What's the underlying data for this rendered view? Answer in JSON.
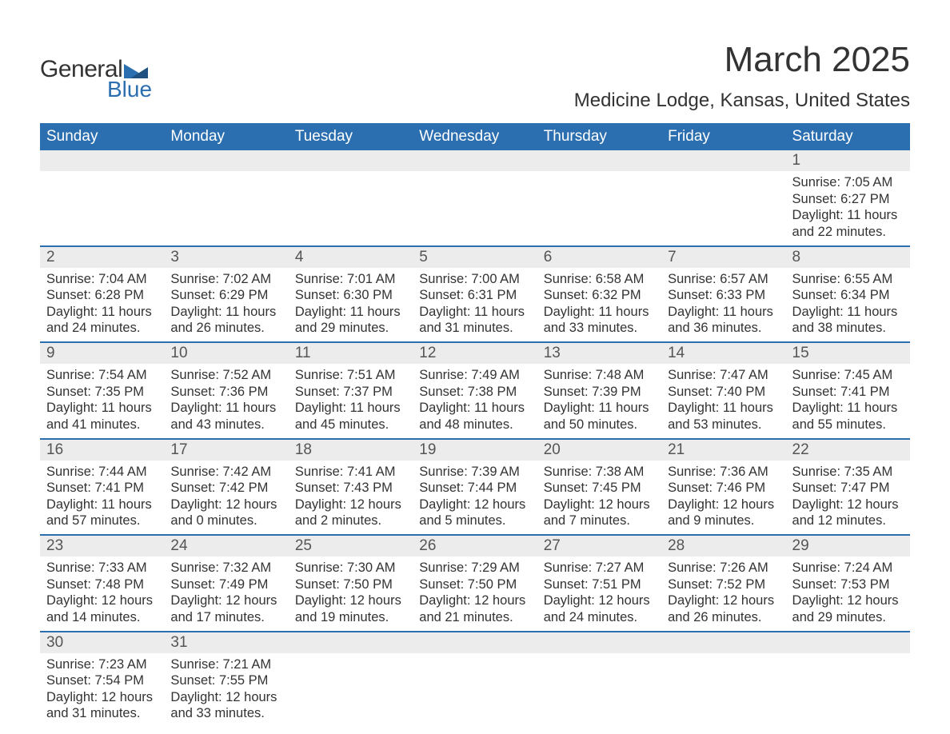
{
  "brand": {
    "word1": "General",
    "word2": "Blue",
    "text_color": "#333333",
    "accent_color": "#2c6fb0"
  },
  "title": {
    "month": "March 2025",
    "location": "Medicine Lodge, Kansas, United States",
    "month_fontsize": 44,
    "location_fontsize": 24
  },
  "calendar": {
    "header_bg": "#2c6fb0",
    "header_text_color": "#ffffff",
    "daynum_row_bg": "#ececec",
    "body_text_color": "#333333",
    "separator_color": "#2c6fb0",
    "day_headers": [
      "Sunday",
      "Monday",
      "Tuesday",
      "Wednesday",
      "Thursday",
      "Friday",
      "Saturday"
    ],
    "weeks": [
      [
        {
          "n": "",
          "sunrise": "",
          "sunset": "",
          "daylight": ""
        },
        {
          "n": "",
          "sunrise": "",
          "sunset": "",
          "daylight": ""
        },
        {
          "n": "",
          "sunrise": "",
          "sunset": "",
          "daylight": ""
        },
        {
          "n": "",
          "sunrise": "",
          "sunset": "",
          "daylight": ""
        },
        {
          "n": "",
          "sunrise": "",
          "sunset": "",
          "daylight": ""
        },
        {
          "n": "",
          "sunrise": "",
          "sunset": "",
          "daylight": ""
        },
        {
          "n": "1",
          "sunrise": "Sunrise: 7:05 AM",
          "sunset": "Sunset: 6:27 PM",
          "daylight": "Daylight: 11 hours and 22 minutes."
        }
      ],
      [
        {
          "n": "2",
          "sunrise": "Sunrise: 7:04 AM",
          "sunset": "Sunset: 6:28 PM",
          "daylight": "Daylight: 11 hours and 24 minutes."
        },
        {
          "n": "3",
          "sunrise": "Sunrise: 7:02 AM",
          "sunset": "Sunset: 6:29 PM",
          "daylight": "Daylight: 11 hours and 26 minutes."
        },
        {
          "n": "4",
          "sunrise": "Sunrise: 7:01 AM",
          "sunset": "Sunset: 6:30 PM",
          "daylight": "Daylight: 11 hours and 29 minutes."
        },
        {
          "n": "5",
          "sunrise": "Sunrise: 7:00 AM",
          "sunset": "Sunset: 6:31 PM",
          "daylight": "Daylight: 11 hours and 31 minutes."
        },
        {
          "n": "6",
          "sunrise": "Sunrise: 6:58 AM",
          "sunset": "Sunset: 6:32 PM",
          "daylight": "Daylight: 11 hours and 33 minutes."
        },
        {
          "n": "7",
          "sunrise": "Sunrise: 6:57 AM",
          "sunset": "Sunset: 6:33 PM",
          "daylight": "Daylight: 11 hours and 36 minutes."
        },
        {
          "n": "8",
          "sunrise": "Sunrise: 6:55 AM",
          "sunset": "Sunset: 6:34 PM",
          "daylight": "Daylight: 11 hours and 38 minutes."
        }
      ],
      [
        {
          "n": "9",
          "sunrise": "Sunrise: 7:54 AM",
          "sunset": "Sunset: 7:35 PM",
          "daylight": "Daylight: 11 hours and 41 minutes."
        },
        {
          "n": "10",
          "sunrise": "Sunrise: 7:52 AM",
          "sunset": "Sunset: 7:36 PM",
          "daylight": "Daylight: 11 hours and 43 minutes."
        },
        {
          "n": "11",
          "sunrise": "Sunrise: 7:51 AM",
          "sunset": "Sunset: 7:37 PM",
          "daylight": "Daylight: 11 hours and 45 minutes."
        },
        {
          "n": "12",
          "sunrise": "Sunrise: 7:49 AM",
          "sunset": "Sunset: 7:38 PM",
          "daylight": "Daylight: 11 hours and 48 minutes."
        },
        {
          "n": "13",
          "sunrise": "Sunrise: 7:48 AM",
          "sunset": "Sunset: 7:39 PM",
          "daylight": "Daylight: 11 hours and 50 minutes."
        },
        {
          "n": "14",
          "sunrise": "Sunrise: 7:47 AM",
          "sunset": "Sunset: 7:40 PM",
          "daylight": "Daylight: 11 hours and 53 minutes."
        },
        {
          "n": "15",
          "sunrise": "Sunrise: 7:45 AM",
          "sunset": "Sunset: 7:41 PM",
          "daylight": "Daylight: 11 hours and 55 minutes."
        }
      ],
      [
        {
          "n": "16",
          "sunrise": "Sunrise: 7:44 AM",
          "sunset": "Sunset: 7:41 PM",
          "daylight": "Daylight: 11 hours and 57 minutes."
        },
        {
          "n": "17",
          "sunrise": "Sunrise: 7:42 AM",
          "sunset": "Sunset: 7:42 PM",
          "daylight": "Daylight: 12 hours and 0 minutes."
        },
        {
          "n": "18",
          "sunrise": "Sunrise: 7:41 AM",
          "sunset": "Sunset: 7:43 PM",
          "daylight": "Daylight: 12 hours and 2 minutes."
        },
        {
          "n": "19",
          "sunrise": "Sunrise: 7:39 AM",
          "sunset": "Sunset: 7:44 PM",
          "daylight": "Daylight: 12 hours and 5 minutes."
        },
        {
          "n": "20",
          "sunrise": "Sunrise: 7:38 AM",
          "sunset": "Sunset: 7:45 PM",
          "daylight": "Daylight: 12 hours and 7 minutes."
        },
        {
          "n": "21",
          "sunrise": "Sunrise: 7:36 AM",
          "sunset": "Sunset: 7:46 PM",
          "daylight": "Daylight: 12 hours and 9 minutes."
        },
        {
          "n": "22",
          "sunrise": "Sunrise: 7:35 AM",
          "sunset": "Sunset: 7:47 PM",
          "daylight": "Daylight: 12 hours and 12 minutes."
        }
      ],
      [
        {
          "n": "23",
          "sunrise": "Sunrise: 7:33 AM",
          "sunset": "Sunset: 7:48 PM",
          "daylight": "Daylight: 12 hours and 14 minutes."
        },
        {
          "n": "24",
          "sunrise": "Sunrise: 7:32 AM",
          "sunset": "Sunset: 7:49 PM",
          "daylight": "Daylight: 12 hours and 17 minutes."
        },
        {
          "n": "25",
          "sunrise": "Sunrise: 7:30 AM",
          "sunset": "Sunset: 7:50 PM",
          "daylight": "Daylight: 12 hours and 19 minutes."
        },
        {
          "n": "26",
          "sunrise": "Sunrise: 7:29 AM",
          "sunset": "Sunset: 7:50 PM",
          "daylight": "Daylight: 12 hours and 21 minutes."
        },
        {
          "n": "27",
          "sunrise": "Sunrise: 7:27 AM",
          "sunset": "Sunset: 7:51 PM",
          "daylight": "Daylight: 12 hours and 24 minutes."
        },
        {
          "n": "28",
          "sunrise": "Sunrise: 7:26 AM",
          "sunset": "Sunset: 7:52 PM",
          "daylight": "Daylight: 12 hours and 26 minutes."
        },
        {
          "n": "29",
          "sunrise": "Sunrise: 7:24 AM",
          "sunset": "Sunset: 7:53 PM",
          "daylight": "Daylight: 12 hours and 29 minutes."
        }
      ],
      [
        {
          "n": "30",
          "sunrise": "Sunrise: 7:23 AM",
          "sunset": "Sunset: 7:54 PM",
          "daylight": "Daylight: 12 hours and 31 minutes."
        },
        {
          "n": "31",
          "sunrise": "Sunrise: 7:21 AM",
          "sunset": "Sunset: 7:55 PM",
          "daylight": "Daylight: 12 hours and 33 minutes."
        },
        {
          "n": "",
          "sunrise": "",
          "sunset": "",
          "daylight": ""
        },
        {
          "n": "",
          "sunrise": "",
          "sunset": "",
          "daylight": ""
        },
        {
          "n": "",
          "sunrise": "",
          "sunset": "",
          "daylight": ""
        },
        {
          "n": "",
          "sunrise": "",
          "sunset": "",
          "daylight": ""
        },
        {
          "n": "",
          "sunrise": "",
          "sunset": "",
          "daylight": ""
        }
      ]
    ]
  }
}
